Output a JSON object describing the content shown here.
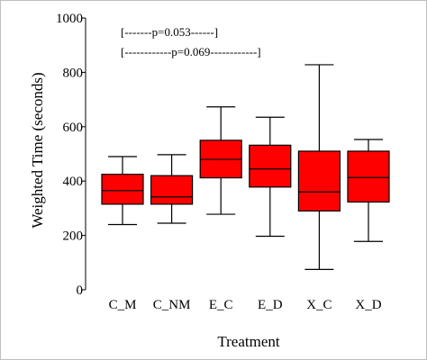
{
  "chart_data": {
    "type": "box",
    "title": "",
    "xlabel": "Treatment",
    "ylabel": "Weighted Time (seconds)",
    "ylim": [
      0,
      1000
    ],
    "yticks": [
      0,
      200,
      400,
      600,
      800,
      1000
    ],
    "grid": false,
    "box_color": "#ff0000",
    "categories": [
      "C_M",
      "C_NM",
      "E_C",
      "E_D",
      "X_C",
      "X_D"
    ],
    "boxes": [
      {
        "category": "C_M",
        "whisker_low": 240,
        "q1": 315,
        "median": 365,
        "q3": 425,
        "whisker_high": 490
      },
      {
        "category": "C_NM",
        "whisker_low": 245,
        "q1": 315,
        "median": 342,
        "q3": 420,
        "whisker_high": 497
      },
      {
        "category": "E_C",
        "whisker_low": 278,
        "q1": 412,
        "median": 480,
        "q3": 550,
        "whisker_high": 673
      },
      {
        "category": "E_D",
        "whisker_low": 197,
        "q1": 378,
        "median": 445,
        "q3": 532,
        "whisker_high": 635
      },
      {
        "category": "X_C",
        "whisker_low": 75,
        "q1": 290,
        "median": 360,
        "q3": 510,
        "whisker_high": 828
      },
      {
        "category": "X_D",
        "whisker_low": 178,
        "q1": 323,
        "median": 413,
        "q3": 510,
        "whisker_high": 553
      }
    ],
    "annotations": [
      {
        "text": "[-------p=0.053------]"
      },
      {
        "text": "[------------p=0.069------------]"
      }
    ]
  }
}
